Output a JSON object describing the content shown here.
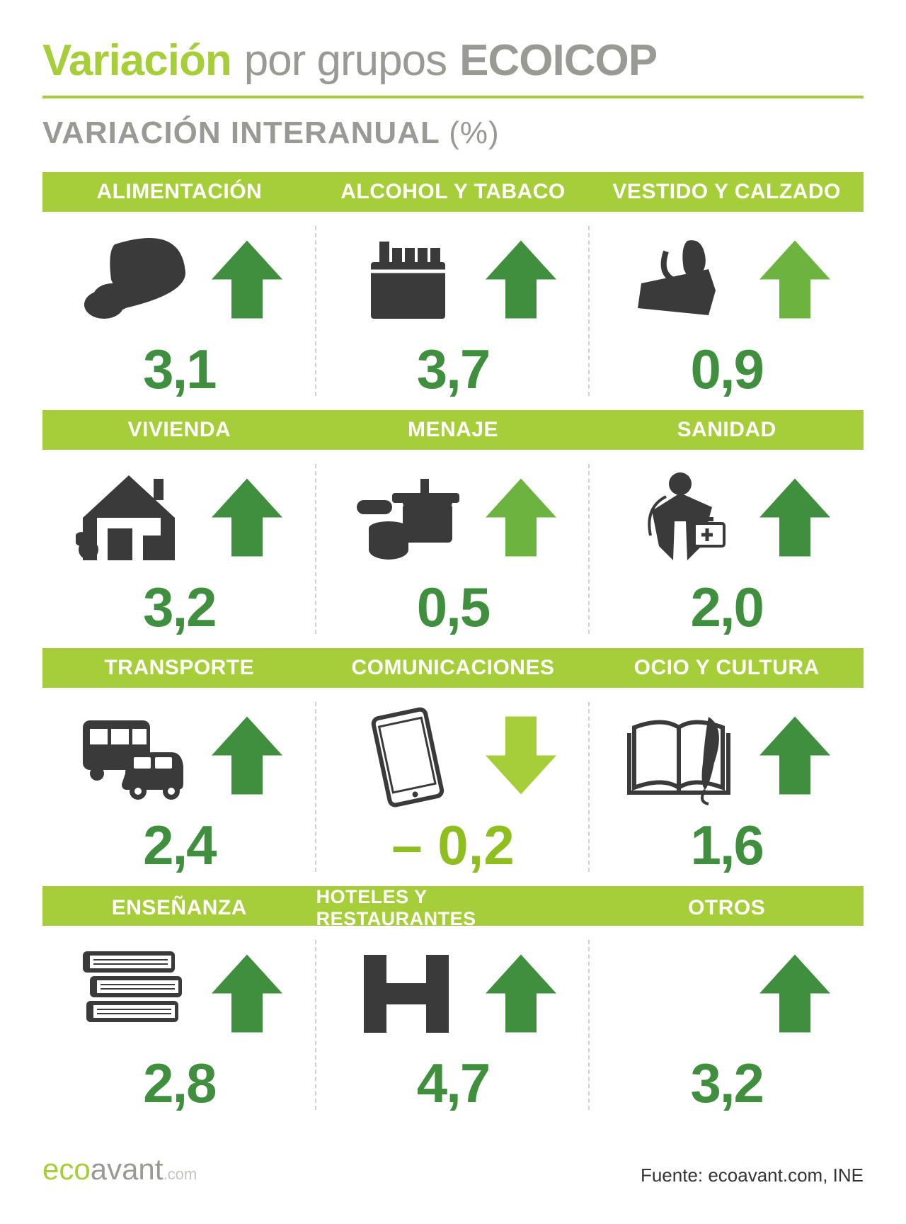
{
  "colors": {
    "lime": "#a6ce39",
    "dark_green": "#3f8f3f",
    "mid_green": "#6db33f",
    "gray_text": "#9a9a94",
    "icon_dark": "#3a3a3a",
    "value_green": "#3f8f3f",
    "value_lime": "#8fbe1f"
  },
  "title": {
    "main": "Variación",
    "sub1": "por grupos",
    "sub2": "ECOICOP"
  },
  "subtitle": {
    "text": "VARIACIÓN INTERANUAL",
    "pct": "(%)"
  },
  "rows": [
    [
      {
        "label": "ALIMENTACIÓN",
        "value": "3,1",
        "direction": "up",
        "arrow_color": "#3f8f3f",
        "value_color": "#3f8f3f",
        "icon": "bread"
      },
      {
        "label": "ALCOHOL Y TABACO",
        "value": "3,7",
        "direction": "up",
        "arrow_color": "#3f8f3f",
        "value_color": "#3f8f3f",
        "icon": "cigarettes"
      },
      {
        "label": "VESTIDO Y CALZADO",
        "value": "0,9",
        "direction": "up",
        "arrow_color": "#6db33f",
        "value_color": "#3f8f3f",
        "icon": "clothes"
      }
    ],
    [
      {
        "label": "VIVIENDA",
        "value": "3,2",
        "direction": "up",
        "arrow_color": "#3f8f3f",
        "value_color": "#3f8f3f",
        "icon": "house"
      },
      {
        "label": "MENAJE",
        "value": "0,5",
        "direction": "up",
        "arrow_color": "#6db33f",
        "value_color": "#3f8f3f",
        "icon": "pots"
      },
      {
        "label": "SANIDAD",
        "value": "2,0",
        "direction": "up",
        "arrow_color": "#3f8f3f",
        "value_color": "#3f8f3f",
        "icon": "nurse"
      }
    ],
    [
      {
        "label": "TRANSPORTE",
        "value": "2,4",
        "direction": "up",
        "arrow_color": "#3f8f3f",
        "value_color": "#3f8f3f",
        "icon": "transport"
      },
      {
        "label": "COMUNICACIONES",
        "value": "– 0,2",
        "direction": "down",
        "arrow_color": "#a6ce39",
        "value_color": "#8fbe1f",
        "icon": "phone"
      },
      {
        "label": "OCIO Y CULTURA",
        "value": "1,6",
        "direction": "up",
        "arrow_color": "#3f8f3f",
        "value_color": "#3f8f3f",
        "icon": "book"
      }
    ],
    [
      {
        "label": "ENSEÑANZA",
        "value": "2,8",
        "direction": "up",
        "arrow_color": "#3f8f3f",
        "value_color": "#3f8f3f",
        "icon": "stackbooks"
      },
      {
        "label": "HOTELES Y  RESTAURANTES",
        "value": "4,7",
        "direction": "up",
        "arrow_color": "#3f8f3f",
        "value_color": "#3f8f3f",
        "icon": "hotel"
      },
      {
        "label": "OTROS",
        "value": "3,2",
        "direction": "up",
        "arrow_color": "#3f8f3f",
        "value_color": "#3f8f3f",
        "icon": "none"
      }
    ]
  ],
  "footer": {
    "logo_eco": "eco",
    "logo_avant": "avant",
    "logo_dotcom": ".com",
    "source": "Fuente: ecoavant.com, INE"
  }
}
